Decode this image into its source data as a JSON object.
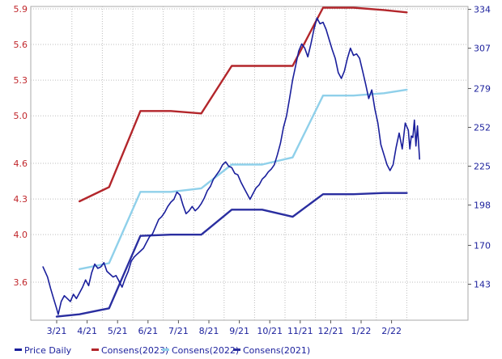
{
  "chart_data": {
    "type": "line",
    "x_ticks": [
      "3/21",
      "4/21",
      "5/21",
      "6/21",
      "7/21",
      "8/21",
      "9/21",
      "10/21",
      "11/21",
      "12/21",
      "1/22",
      "2/22"
    ],
    "left_axis": {
      "ticks": [
        "3.6",
        "4.0",
        "4.3",
        "4.6",
        "5.0",
        "5.3",
        "5.6",
        "5.9"
      ],
      "range": [
        3.28,
        5.92
      ],
      "color": "#c0262b"
    },
    "right_axis": {
      "ticks": [
        "143",
        "170",
        "198",
        "225",
        "252",
        "279",
        "307",
        "334"
      ],
      "range": [
        118,
        336
      ],
      "color": "#1a1f9c"
    },
    "series": [
      {
        "name": "Consens(2023)",
        "axis": "left",
        "color": "#b3262b",
        "points": [
          [
            0.75,
            4.28
          ],
          [
            1.72,
            4.4
          ],
          [
            2.75,
            5.04
          ],
          [
            3.75,
            5.04
          ],
          [
            4.75,
            5.02
          ],
          [
            5.75,
            5.42
          ],
          [
            6.75,
            5.42
          ],
          [
            7.75,
            5.42
          ],
          [
            8.75,
            5.91
          ],
          [
            9.75,
            5.91
          ],
          [
            10.75,
            5.89
          ],
          [
            11.5,
            5.87
          ]
        ]
      },
      {
        "name": "Consens(2022)",
        "axis": "left",
        "color": "#8fd0ea",
        "points": [
          [
            0.75,
            3.71
          ],
          [
            1.72,
            3.76
          ],
          [
            2.75,
            4.36
          ],
          [
            3.75,
            4.36
          ],
          [
            4.75,
            4.39
          ],
          [
            5.75,
            4.59
          ],
          [
            6.75,
            4.59
          ],
          [
            7.75,
            4.65
          ],
          [
            8.75,
            5.17
          ],
          [
            9.75,
            5.17
          ],
          [
            10.75,
            5.19
          ],
          [
            11.5,
            5.22
          ]
        ]
      },
      {
        "name": "Consens(2021)",
        "axis": "left",
        "color": "#2a2ea0",
        "points": [
          [
            0.0,
            3.31
          ],
          [
            0.75,
            3.33
          ],
          [
            1.72,
            3.38
          ],
          [
            2.75,
            3.99
          ],
          [
            3.75,
            4.0
          ],
          [
            4.75,
            4.0
          ],
          [
            5.75,
            4.21
          ],
          [
            6.75,
            4.21
          ],
          [
            7.75,
            4.15
          ],
          [
            8.75,
            4.34
          ],
          [
            9.75,
            4.34
          ],
          [
            10.75,
            4.35
          ],
          [
            11.5,
            4.35
          ]
        ]
      },
      {
        "name": "Price Daily",
        "axis": "right",
        "color": "#1a1f9c",
        "points": [
          [
            -0.45,
            155
          ],
          [
            -0.3,
            148
          ],
          [
            -0.2,
            140
          ],
          [
            -0.1,
            133
          ],
          [
            0.0,
            126
          ],
          [
            0.05,
            122
          ],
          [
            0.15,
            131
          ],
          [
            0.25,
            135
          ],
          [
            0.35,
            133
          ],
          [
            0.45,
            131
          ],
          [
            0.55,
            136
          ],
          [
            0.65,
            133
          ],
          [
            0.75,
            137
          ],
          [
            0.85,
            141
          ],
          [
            0.95,
            146
          ],
          [
            1.05,
            142
          ],
          [
            1.15,
            151
          ],
          [
            1.25,
            157
          ],
          [
            1.35,
            154
          ],
          [
            1.45,
            155
          ],
          [
            1.55,
            158
          ],
          [
            1.65,
            152
          ],
          [
            1.75,
            150
          ],
          [
            1.85,
            148
          ],
          [
            1.95,
            149
          ],
          [
            2.05,
            145
          ],
          [
            2.15,
            141
          ],
          [
            2.25,
            147
          ],
          [
            2.35,
            152
          ],
          [
            2.45,
            159
          ],
          [
            2.55,
            162
          ],
          [
            2.65,
            164
          ],
          [
            2.75,
            166
          ],
          [
            2.85,
            168
          ],
          [
            2.95,
            172
          ],
          [
            3.05,
            176
          ],
          [
            3.15,
            178
          ],
          [
            3.25,
            183
          ],
          [
            3.35,
            188
          ],
          [
            3.45,
            190
          ],
          [
            3.55,
            193
          ],
          [
            3.65,
            197
          ],
          [
            3.75,
            200
          ],
          [
            3.85,
            202
          ],
          [
            3.95,
            207
          ],
          [
            4.05,
            205
          ],
          [
            4.15,
            198
          ],
          [
            4.25,
            192
          ],
          [
            4.35,
            194
          ],
          [
            4.45,
            197
          ],
          [
            4.55,
            194
          ],
          [
            4.65,
            196
          ],
          [
            4.75,
            199
          ],
          [
            4.85,
            203
          ],
          [
            4.95,
            208
          ],
          [
            5.05,
            211
          ],
          [
            5.15,
            216
          ],
          [
            5.25,
            219
          ],
          [
            5.35,
            222
          ],
          [
            5.45,
            226
          ],
          [
            5.55,
            228
          ],
          [
            5.65,
            225
          ],
          [
            5.75,
            224
          ],
          [
            5.85,
            220
          ],
          [
            5.95,
            219
          ],
          [
            6.05,
            214
          ],
          [
            6.15,
            210
          ],
          [
            6.25,
            206
          ],
          [
            6.35,
            202
          ],
          [
            6.45,
            206
          ],
          [
            6.55,
            210
          ],
          [
            6.65,
            212
          ],
          [
            6.75,
            216
          ],
          [
            6.85,
            218
          ],
          [
            6.95,
            221
          ],
          [
            7.05,
            223
          ],
          [
            7.15,
            226
          ],
          [
            7.25,
            233
          ],
          [
            7.35,
            241
          ],
          [
            7.45,
            252
          ],
          [
            7.55,
            260
          ],
          [
            7.65,
            272
          ],
          [
            7.75,
            285
          ],
          [
            7.85,
            295
          ],
          [
            7.95,
            305
          ],
          [
            8.05,
            310
          ],
          [
            8.15,
            307
          ],
          [
            8.25,
            301
          ],
          [
            8.35,
            310
          ],
          [
            8.45,
            320
          ],
          [
            8.55,
            328
          ],
          [
            8.65,
            324
          ],
          [
            8.75,
            325
          ],
          [
            8.85,
            320
          ],
          [
            8.95,
            313
          ],
          [
            9.05,
            306
          ],
          [
            9.15,
            300
          ],
          [
            9.25,
            290
          ],
          [
            9.35,
            286
          ],
          [
            9.45,
            291
          ],
          [
            9.55,
            300
          ],
          [
            9.65,
            307
          ],
          [
            9.75,
            302
          ],
          [
            9.85,
            303
          ],
          [
            9.95,
            300
          ],
          [
            10.05,
            291
          ],
          [
            10.15,
            282
          ],
          [
            10.25,
            272
          ],
          [
            10.35,
            278
          ],
          [
            10.45,
            265
          ],
          [
            10.55,
            255
          ],
          [
            10.65,
            240
          ],
          [
            10.75,
            233
          ],
          [
            10.85,
            226
          ],
          [
            10.95,
            222
          ],
          [
            11.05,
            226
          ],
          [
            11.15,
            238
          ],
          [
            11.25,
            248
          ],
          [
            11.35,
            237
          ],
          [
            11.45,
            255
          ],
          [
            11.55,
            250
          ],
          [
            11.6,
            237
          ],
          [
            11.65,
            246
          ],
          [
            11.7,
            245
          ],
          [
            11.75,
            257
          ],
          [
            11.8,
            239
          ],
          [
            11.85,
            253
          ],
          [
            11.92,
            230
          ]
        ]
      }
    ],
    "legend_position": "bottom",
    "grid": true
  }
}
